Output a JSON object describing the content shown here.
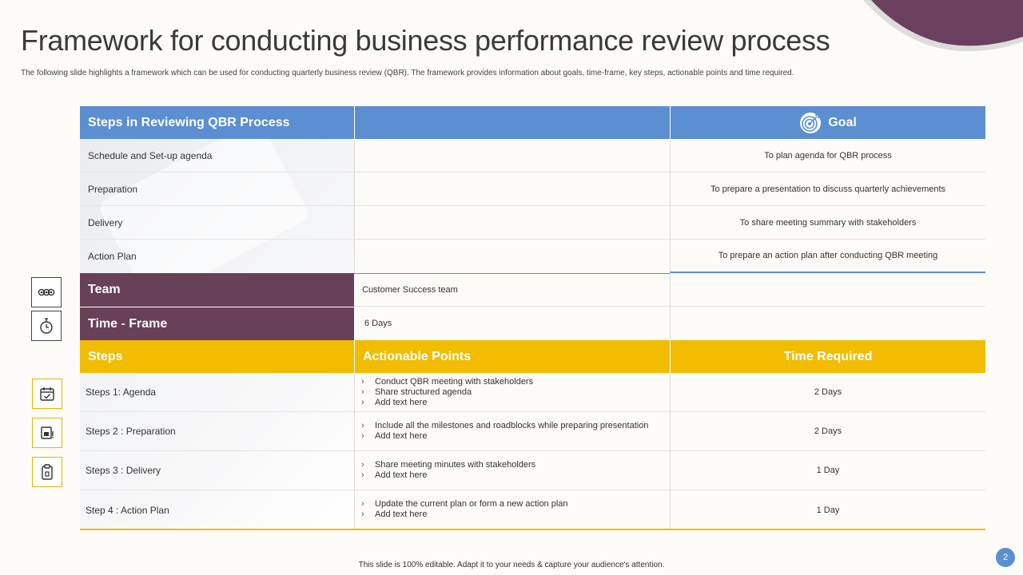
{
  "title": "Framework for conducting business performance review process",
  "subtitle": "The following slide highlights a framework which can be used for conducting quarterly business review (QBR). The framework provides information about goals, time-frame, key steps, actionable points and time required.",
  "colors": {
    "blue": "#5b8fd1",
    "purple": "#684058",
    "yellow": "#f2bc00"
  },
  "review": {
    "header": "Steps in Reviewing QBR Process",
    "goal_header": "Goal",
    "rows": [
      {
        "step": "Schedule and Set-up agenda",
        "goal": "To plan agenda for QBR process"
      },
      {
        "step": "Preparation",
        "goal": "To prepare a presentation to discuss quarterly achievements"
      },
      {
        "step": "Delivery",
        "goal": "To share meeting summary with stakeholders"
      },
      {
        "step": "Action Plan",
        "goal": "To prepare an action plan after conducting QBR meeting"
      }
    ]
  },
  "team": {
    "label": "Team",
    "value": "Customer Success team",
    "icon": "team-icon"
  },
  "time_frame": {
    "label": "Time - Frame",
    "value": "6 Days",
    "icon": "stopwatch-icon"
  },
  "steps_table": {
    "headers": {
      "steps": "Steps",
      "actionable": "Actionable Points",
      "time": "Time Required"
    },
    "rows": [
      {
        "step": "Steps 1: Agenda",
        "icon": "calendar-check-icon",
        "points": [
          "Conduct QBR meeting  with stakeholders",
          "Share structured agenda",
          "Add text here"
        ],
        "time": "2 Days"
      },
      {
        "step": "Steps 2 : Preparation",
        "icon": "presentation-icon",
        "points": [
          "Include  all the milestones and roadblocks while preparing presentation",
          "Add text here"
        ],
        "time": "2 Days"
      },
      {
        "step": "Steps 3 : Delivery",
        "icon": "clipboard-icon",
        "points": [
          "Share meeting minutes with stakeholders",
          "Add text here"
        ],
        "time": "1 Day"
      },
      {
        "step": "Step 4 : Action Plan",
        "icon": "",
        "points": [
          "Update the current plan or form a new action plan",
          "Add text here"
        ],
        "time": "1 Day"
      }
    ]
  },
  "footer": "This slide is 100% editable.  Adapt it to your needs & capture your audience's attention.",
  "page_number": "2"
}
